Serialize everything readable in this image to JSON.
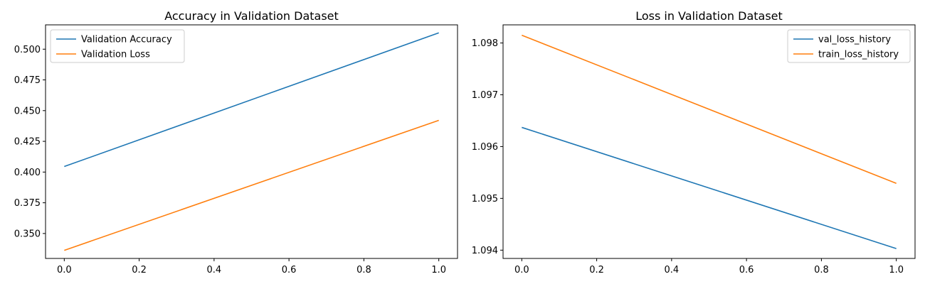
{
  "chart_data": [
    {
      "type": "line",
      "title": "Accuracy in Validation Dataset",
      "xlabel": "",
      "ylabel": "",
      "xlim": [
        -0.05,
        1.05
      ],
      "ylim": [
        0.3297,
        0.5198
      ],
      "xticks": [
        0.0,
        0.2,
        0.4,
        0.6,
        0.8,
        1.0
      ],
      "xtick_labels": [
        "0.0",
        "0.2",
        "0.4",
        "0.6",
        "0.8",
        "1.0"
      ],
      "yticks": [
        0.35,
        0.375,
        0.4,
        0.425,
        0.45,
        0.475,
        0.5
      ],
      "ytick_labels": [
        "0.350",
        "0.375",
        "0.400",
        "0.425",
        "0.450",
        "0.475",
        "0.500"
      ],
      "grid": false,
      "legend_position": "top-left",
      "series": [
        {
          "name": "Validation Accuracy",
          "color": "#1f77b4",
          "x": [
            0,
            1
          ],
          "y": [
            0.4045,
            0.5133
          ]
        },
        {
          "name": "Validation Loss",
          "color": "#ff7f0e",
          "x": [
            0,
            1
          ],
          "y": [
            0.3363,
            0.4421
          ]
        }
      ]
    },
    {
      "type": "line",
      "title": "Loss in Validation Dataset",
      "xlabel": "",
      "ylabel": "",
      "xlim": [
        -0.05,
        1.05
      ],
      "ylim": [
        1.09384,
        1.09835
      ],
      "xticks": [
        0.0,
        0.2,
        0.4,
        0.6,
        0.8,
        1.0
      ],
      "xtick_labels": [
        "0.0",
        "0.2",
        "0.4",
        "0.6",
        "0.8",
        "1.0"
      ],
      "yticks": [
        1.094,
        1.095,
        1.096,
        1.097,
        1.098
      ],
      "ytick_labels": [
        "1.094",
        "1.095",
        "1.096",
        "1.097",
        "1.098"
      ],
      "grid": false,
      "legend_position": "top-right",
      "series": [
        {
          "name": "val_loss_history",
          "color": "#1f77b4",
          "x": [
            0,
            1
          ],
          "y": [
            1.09637,
            1.09403
          ]
        },
        {
          "name": "train_loss_history",
          "color": "#ff7f0e",
          "x": [
            0,
            1
          ],
          "y": [
            1.09815,
            1.09529
          ]
        }
      ]
    }
  ]
}
